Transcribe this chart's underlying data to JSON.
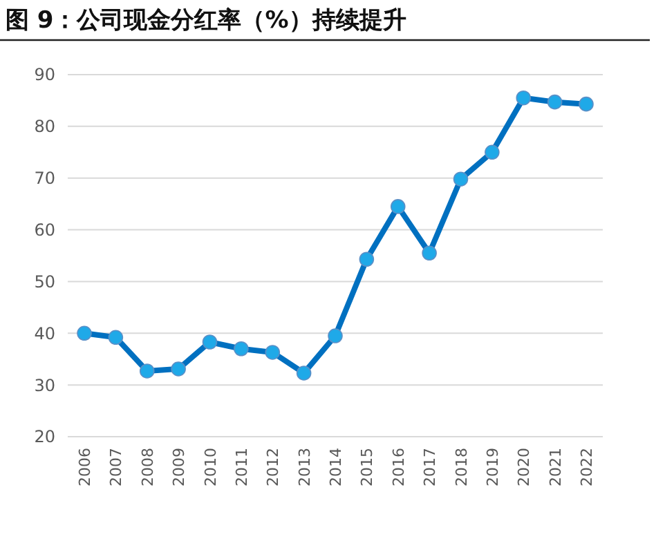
{
  "chart_data": {
    "type": "line",
    "title": "图 9：公司现金分红率（%）持续提升",
    "categories": [
      "2006",
      "2007",
      "2008",
      "2009",
      "2010",
      "2011",
      "2012",
      "2013",
      "2014",
      "2015",
      "2016",
      "2017",
      "2018",
      "2019",
      "2020",
      "2021",
      "2022"
    ],
    "series": [
      {
        "color": "#0070c0",
        "values": [
          40,
          39.2,
          32.7,
          33.1,
          38.3,
          37,
          36.3,
          32.3,
          39.5,
          54.3,
          64.5,
          55.5,
          69.8,
          75,
          85.5,
          84.7,
          84.3
        ]
      }
    ],
    "ylim": [
      20,
      90
    ],
    "yticks": [
      20,
      30,
      40,
      50,
      60,
      70,
      80,
      90
    ],
    "grid": "y",
    "marker": "circle",
    "line_style": "solid"
  }
}
